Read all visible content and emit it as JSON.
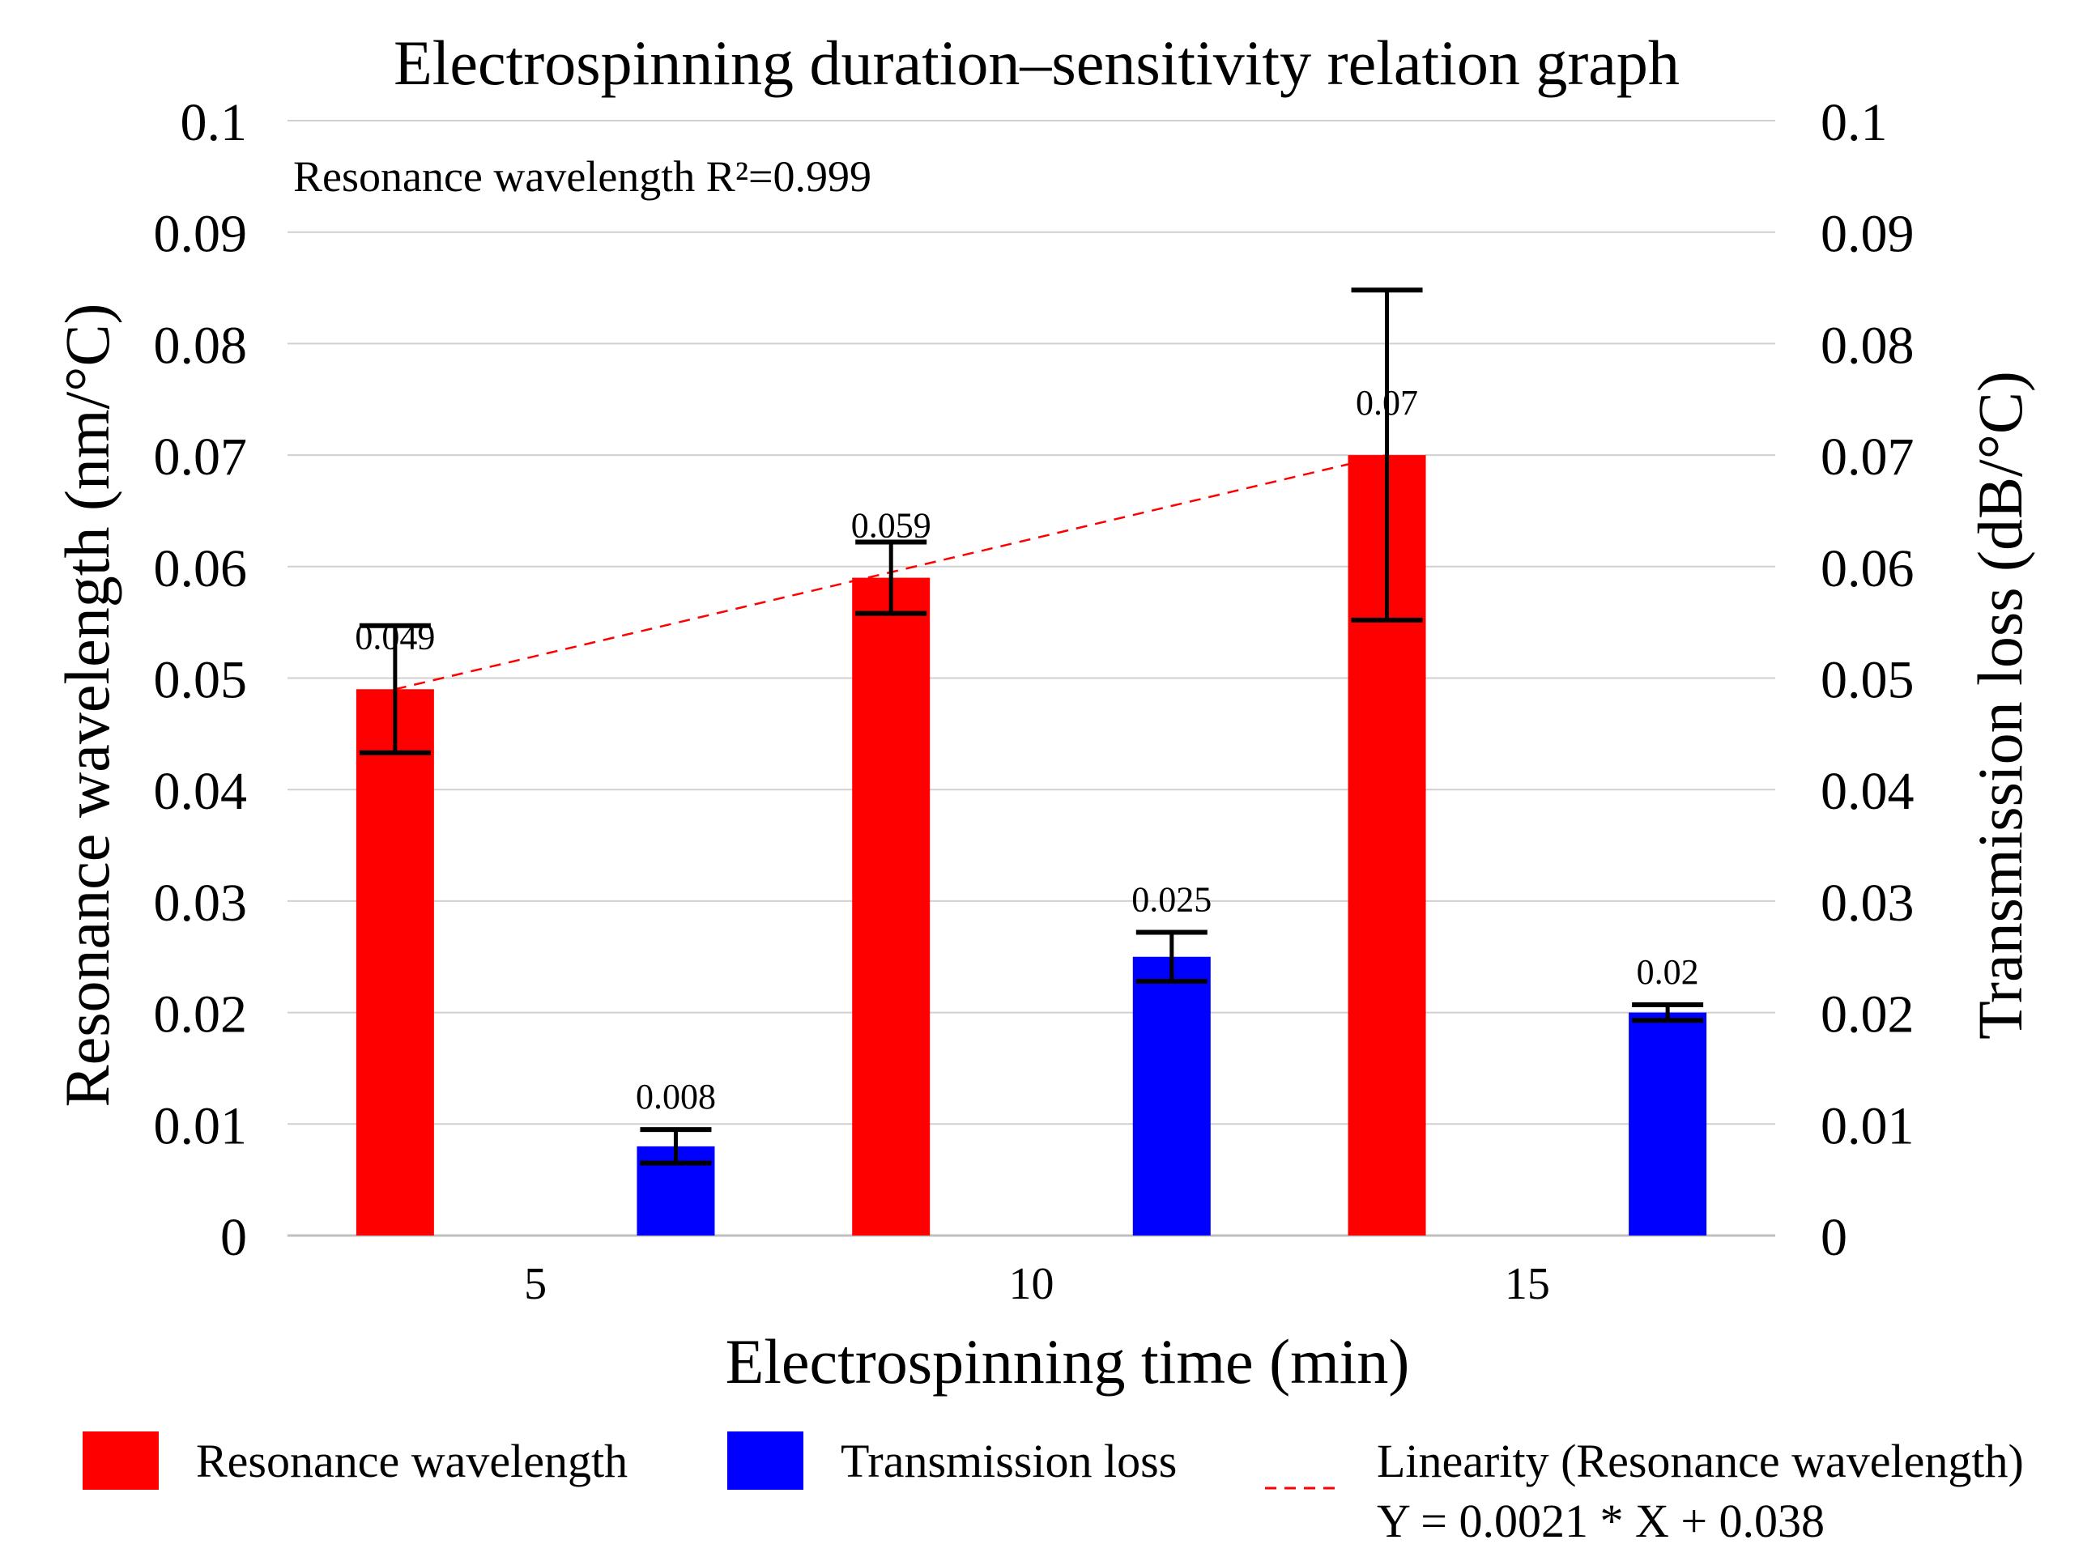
{
  "chart_data": {
    "type": "bar",
    "title": "Electrospinning duration–sensitivity relation graph",
    "xlabel": "Electrospinning time (min)",
    "ylabel_left": "Resonance wavelength (nm/°C)",
    "ylabel_right": "Transmission loss (dB/°C)",
    "categories": [
      "5",
      "10",
      "15"
    ],
    "ylim": [
      0,
      0.1
    ],
    "yticks": [
      "0",
      "0.01",
      "0.02",
      "0.03",
      "0.04",
      "0.05",
      "0.06",
      "0.07",
      "0.08",
      "0.09",
      "0.1"
    ],
    "grid": true,
    "series": [
      {
        "name": "Resonance wavelength",
        "color": "#ff0000",
        "values": [
          0.049,
          0.059,
          0.07
        ],
        "labels": [
          "0.049",
          "0.059",
          "0.07"
        ],
        "error_low": [
          0.0433,
          0.0558,
          0.0552
        ],
        "error_high": [
          0.0547,
          0.0622,
          0.0848
        ]
      },
      {
        "name": "Transmission loss",
        "color": "#0000ff",
        "values": [
          0.008,
          0.025,
          0.02
        ],
        "labels": [
          "0.008",
          "0.025",
          "0.02"
        ],
        "error_low": [
          0.0065,
          0.0228,
          0.0193
        ],
        "error_high": [
          0.0095,
          0.0272,
          0.0207
        ]
      }
    ],
    "trendline": {
      "name": "Linearity (Resonance wavelength)",
      "equation": "Y = 0.0021 * X + 0.038",
      "color": "#ff0000",
      "points": [
        0.049,
        0.0595,
        0.07
      ]
    },
    "annotation": "Resonance wavelength R²=0.999",
    "legend_position": "bottom"
  }
}
